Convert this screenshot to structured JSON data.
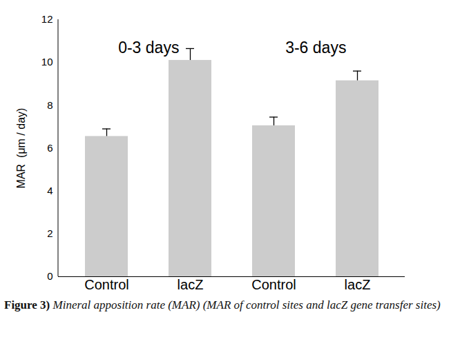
{
  "chart_data": {
    "type": "bar",
    "categories": [
      "Control",
      "lacZ",
      "Control",
      "lacZ"
    ],
    "values": [
      6.55,
      10.1,
      7.05,
      9.15
    ],
    "errors": [
      0.35,
      0.55,
      0.4,
      0.45
    ],
    "color": "#cccccc",
    "y_label": "MAR  (μm / day)",
    "ylim": [
      0,
      12
    ],
    "yticks": [
      0,
      2,
      4,
      6,
      8,
      10,
      12
    ],
    "grid": false,
    "annotations": [
      {
        "text": "0-3 days"
      },
      {
        "text": "3-6 days"
      }
    ],
    "caption": {
      "label": "Figure 3)",
      "text": "Mineral apposition rate (MAR) (MAR of control sites and lacZ gene transfer sites)"
    }
  }
}
